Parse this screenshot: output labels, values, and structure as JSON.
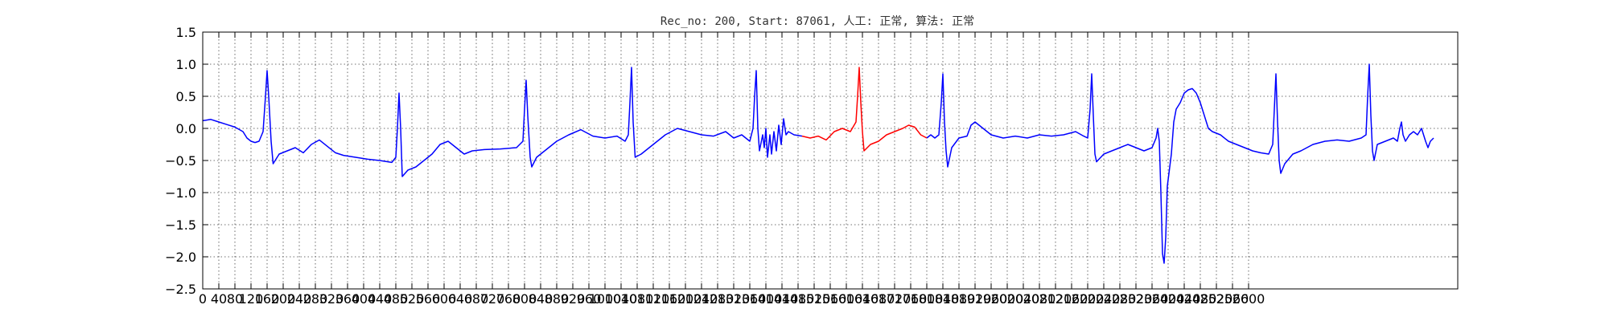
{
  "chart_data": {
    "type": "line",
    "title": "Rec_no: 200, Start: 87061, 人工: 正常, 算法: 正常",
    "xlabel": "",
    "ylabel": "",
    "xlim": [
      0,
      3120
    ],
    "ylim": [
      -2.5,
      1.5
    ],
    "grid": true,
    "yticks": [
      1.5,
      1.0,
      0.5,
      0.0,
      -0.5,
      -1.0,
      -1.5,
      -2.0,
      -2.5
    ],
    "ytick_labels": [
      "1.5",
      "1.0",
      "0.5",
      "0.0",
      "−0.5",
      "−1.0",
      "−1.5",
      "−2.0",
      "−2.5"
    ],
    "xticks": [
      0,
      40,
      80,
      120,
      160,
      200,
      240,
      280,
      320,
      360,
      400,
      440,
      480,
      520,
      560,
      600,
      640,
      680,
      720,
      760,
      800,
      840,
      880,
      920,
      960,
      1000,
      1040,
      1080,
      1120,
      1160,
      1200,
      1240,
      1280,
      1320,
      1360,
      1400,
      1440,
      1480,
      1520,
      1560,
      1600,
      1640,
      1680,
      1720,
      1760,
      1800,
      1840,
      1880,
      1920,
      1960,
      2000,
      2040,
      2080,
      2120,
      2160,
      2200,
      2240,
      2280,
      2320,
      2360,
      2400,
      2440,
      2480,
      2520,
      2560,
      2600
    ],
    "xtick_labels": [
      "0",
      "40",
      "80",
      "120",
      "160",
      "200",
      "240",
      "280",
      "320",
      "360",
      "400",
      "440",
      "480",
      "520",
      "560",
      "600",
      "640",
      "680",
      "720",
      "760",
      "800",
      "840",
      "880",
      "920",
      "960",
      "1000",
      "1040",
      "1080",
      "1120",
      "1160",
      "1200",
      "1240",
      "1280",
      "1320",
      "1360",
      "1400",
      "1440",
      "1480",
      "1520",
      "1560",
      "1600",
      "1640",
      "1680",
      "1720",
      "1760",
      "1800",
      "1840",
      "1880",
      "1920",
      "1960",
      "2000",
      "2040",
      "2080",
      "2120",
      "2160",
      "2200",
      "2240",
      "2280",
      "2320",
      "2360",
      "2400",
      "2440",
      "2480",
      "2520",
      "2560",
      "2600"
    ],
    "colors": {
      "normal": "#0000ff",
      "highlight": "#ff0000",
      "grid": "#444444",
      "axes": "#000000"
    },
    "series": [
      {
        "color": "#0000ff",
        "points": [
          [
            0,
            0.12
          ],
          [
            20,
            0.14
          ],
          [
            40,
            0.1
          ],
          [
            60,
            0.06
          ],
          [
            80,
            0.02
          ],
          [
            100,
            -0.05
          ],
          [
            110,
            -0.15
          ],
          [
            120,
            -0.2
          ],
          [
            130,
            -0.22
          ],
          [
            140,
            -0.2
          ],
          [
            150,
            -0.05
          ],
          [
            156,
            0.5
          ],
          [
            160,
            0.9
          ],
          [
            164,
            0.5
          ],
          [
            170,
            -0.2
          ],
          [
            175,
            -0.55
          ],
          [
            190,
            -0.4
          ],
          [
            210,
            -0.35
          ],
          [
            230,
            -0.3
          ],
          [
            250,
            -0.38
          ],
          [
            270,
            -0.25
          ],
          [
            290,
            -0.18
          ],
          [
            310,
            -0.28
          ],
          [
            330,
            -0.38
          ],
          [
            350,
            -0.42
          ],
          [
            380,
            -0.45
          ],
          [
            410,
            -0.48
          ],
          [
            440,
            -0.5
          ],
          [
            470,
            -0.53
          ],
          [
            480,
            -0.45
          ],
          [
            484,
            0.0
          ],
          [
            488,
            0.55
          ],
          [
            492,
            0.0
          ],
          [
            496,
            -0.75
          ],
          [
            510,
            -0.65
          ],
          [
            530,
            -0.6
          ],
          [
            550,
            -0.5
          ],
          [
            570,
            -0.4
          ],
          [
            590,
            -0.25
          ],
          [
            610,
            -0.2
          ],
          [
            630,
            -0.3
          ],
          [
            650,
            -0.4
          ],
          [
            670,
            -0.35
          ],
          [
            700,
            -0.33
          ],
          [
            740,
            -0.32
          ],
          [
            780,
            -0.3
          ],
          [
            796,
            -0.2
          ],
          [
            800,
            0.3
          ],
          [
            804,
            0.75
          ],
          [
            808,
            0.2
          ],
          [
            814,
            -0.45
          ],
          [
            818,
            -0.6
          ],
          [
            830,
            -0.45
          ],
          [
            850,
            -0.35
          ],
          [
            880,
            -0.2
          ],
          [
            910,
            -0.1
          ],
          [
            940,
            -0.02
          ],
          [
            970,
            -0.12
          ],
          [
            1000,
            -0.15
          ],
          [
            1030,
            -0.12
          ],
          [
            1050,
            -0.2
          ],
          [
            1058,
            -0.1
          ],
          [
            1062,
            0.4
          ],
          [
            1066,
            0.95
          ],
          [
            1070,
            0.1
          ],
          [
            1075,
            -0.45
          ],
          [
            1090,
            -0.4
          ],
          [
            1120,
            -0.25
          ],
          [
            1150,
            -0.1
          ],
          [
            1180,
            0.0
          ],
          [
            1210,
            -0.05
          ],
          [
            1240,
            -0.1
          ],
          [
            1270,
            -0.12
          ],
          [
            1300,
            -0.05
          ],
          [
            1320,
            -0.15
          ],
          [
            1340,
            -0.1
          ],
          [
            1360,
            -0.2
          ],
          [
            1368,
            0.0
          ],
          [
            1372,
            0.5
          ],
          [
            1376,
            0.9
          ],
          [
            1380,
            0.0
          ],
          [
            1384,
            -0.35
          ],
          [
            1392,
            -0.1
          ],
          [
            1396,
            -0.3
          ],
          [
            1400,
            0.0
          ],
          [
            1404,
            -0.45
          ],
          [
            1410,
            -0.1
          ],
          [
            1414,
            -0.4
          ],
          [
            1420,
            -0.05
          ],
          [
            1426,
            -0.35
          ],
          [
            1432,
            0.05
          ],
          [
            1438,
            -0.25
          ],
          [
            1444,
            0.15
          ],
          [
            1450,
            -0.1
          ],
          [
            1456,
            -0.05
          ],
          [
            1470,
            -0.1
          ],
          [
            1490,
            -0.12
          ]
        ]
      },
      {
        "color": "#ff0000",
        "points": [
          [
            1490,
            -0.12
          ],
          [
            1510,
            -0.15
          ],
          [
            1530,
            -0.12
          ],
          [
            1550,
            -0.18
          ],
          [
            1570,
            -0.05
          ],
          [
            1590,
            0.0
          ],
          [
            1610,
            -0.05
          ],
          [
            1624,
            0.1
          ],
          [
            1628,
            0.5
          ],
          [
            1632,
            0.95
          ],
          [
            1636,
            0.4
          ],
          [
            1640,
            -0.05
          ],
          [
            1644,
            -0.35
          ],
          [
            1660,
            -0.25
          ],
          [
            1680,
            -0.2
          ],
          [
            1700,
            -0.1
          ],
          [
            1720,
            -0.05
          ],
          [
            1740,
            0.0
          ],
          [
            1755,
            0.05
          ],
          [
            1770,
            0.02
          ],
          [
            1785,
            -0.1
          ],
          [
            1800,
            -0.15
          ]
        ]
      },
      {
        "color": "#0000ff",
        "points": [
          [
            1800,
            -0.15
          ],
          [
            1810,
            -0.1
          ],
          [
            1820,
            -0.15
          ],
          [
            1830,
            -0.1
          ],
          [
            1836,
            0.4
          ],
          [
            1840,
            0.85
          ],
          [
            1844,
            0.1
          ],
          [
            1848,
            -0.35
          ],
          [
            1852,
            -0.6
          ],
          [
            1862,
            -0.3
          ],
          [
            1880,
            -0.15
          ],
          [
            1900,
            -0.12
          ],
          [
            1910,
            0.05
          ],
          [
            1920,
            0.1
          ],
          [
            1940,
            0.0
          ],
          [
            1960,
            -0.1
          ],
          [
            1990,
            -0.15
          ],
          [
            2020,
            -0.12
          ],
          [
            2050,
            -0.15
          ],
          [
            2080,
            -0.1
          ],
          [
            2110,
            -0.12
          ],
          [
            2140,
            -0.1
          ],
          [
            2170,
            -0.05
          ],
          [
            2190,
            -0.12
          ],
          [
            2200,
            -0.15
          ],
          [
            2206,
            0.3
          ],
          [
            2210,
            0.85
          ],
          [
            2214,
            0.2
          ],
          [
            2218,
            -0.4
          ],
          [
            2222,
            -0.52
          ],
          [
            2240,
            -0.4
          ],
          [
            2260,
            -0.35
          ],
          [
            2280,
            -0.3
          ],
          [
            2300,
            -0.25
          ],
          [
            2320,
            -0.3
          ],
          [
            2340,
            -0.35
          ],
          [
            2360,
            -0.3
          ],
          [
            2370,
            -0.15
          ],
          [
            2374,
            0.0
          ],
          [
            2378,
            -0.2
          ],
          [
            2382,
            -1.0
          ],
          [
            2386,
            -1.95
          ],
          [
            2390,
            -2.1
          ],
          [
            2394,
            -1.7
          ],
          [
            2398,
            -0.9
          ],
          [
            2402,
            -0.7
          ],
          [
            2408,
            -0.4
          ],
          [
            2414,
            0.1
          ],
          [
            2420,
            0.3
          ],
          [
            2430,
            0.4
          ],
          [
            2440,
            0.55
          ],
          [
            2450,
            0.6
          ],
          [
            2460,
            0.62
          ],
          [
            2470,
            0.55
          ],
          [
            2480,
            0.4
          ],
          [
            2490,
            0.2
          ],
          [
            2500,
            0.0
          ],
          [
            2510,
            -0.05
          ],
          [
            2530,
            -0.1
          ],
          [
            2550,
            -0.2
          ],
          [
            2570,
            -0.25
          ],
          [
            2590,
            -0.3
          ],
          [
            2610,
            -0.35
          ],
          [
            2630,
            -0.38
          ],
          [
            2650,
            -0.4
          ],
          [
            2660,
            -0.25
          ],
          [
            2664,
            0.3
          ],
          [
            2668,
            0.85
          ],
          [
            2672,
            0.1
          ],
          [
            2676,
            -0.5
          ],
          [
            2680,
            -0.7
          ],
          [
            2690,
            -0.55
          ],
          [
            2710,
            -0.4
          ],
          [
            2730,
            -0.35
          ],
          [
            2760,
            -0.25
          ],
          [
            2790,
            -0.2
          ],
          [
            2820,
            -0.18
          ],
          [
            2850,
            -0.2
          ],
          [
            2880,
            -0.15
          ],
          [
            2892,
            -0.1
          ],
          [
            2896,
            0.5
          ],
          [
            2900,
            1.0
          ],
          [
            2904,
            0.2
          ],
          [
            2908,
            -0.35
          ],
          [
            2912,
            -0.5
          ],
          [
            2920,
            -0.25
          ],
          [
            2940,
            -0.2
          ],
          [
            2960,
            -0.15
          ],
          [
            2970,
            -0.2
          ],
          [
            2976,
            0.0
          ],
          [
            2980,
            0.1
          ],
          [
            2984,
            -0.1
          ],
          [
            2990,
            -0.2
          ],
          [
            3000,
            -0.1
          ],
          [
            3010,
            -0.05
          ],
          [
            3020,
            -0.1
          ],
          [
            3030,
            0.0
          ],
          [
            3040,
            -0.2
          ],
          [
            3046,
            -0.3
          ],
          [
            3052,
            -0.2
          ],
          [
            3060,
            -0.15
          ]
        ]
      }
    ]
  }
}
